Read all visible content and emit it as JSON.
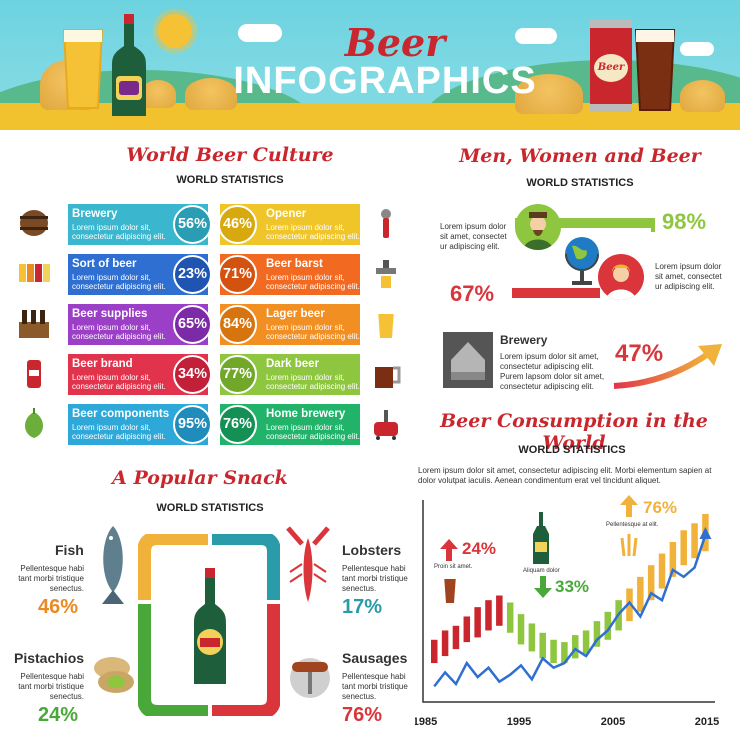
{
  "header": {
    "title": "Beer",
    "subtitle": "INFOGRAPHICS",
    "can_label": "Beer"
  },
  "culture": {
    "title": "World Beer Culture",
    "subtitle": "WORLD STATISTICS",
    "left": [
      {
        "title": "Brewery",
        "text": "Lorem ipsum dolor sit, consectetur adipiscing elit.",
        "pct": "56%",
        "color": "#3ab6cf",
        "circle": "#2a9cb4",
        "icon": "barrel-icon"
      },
      {
        "title": "Sort of beer",
        "text": "Lorem ipsum dolor sit, consectetur adipiscing elit.",
        "pct": "23%",
        "color": "#2f6fd1",
        "circle": "#1f55b0",
        "icon": "beer-glasses-icon"
      },
      {
        "title": "Beer supplies",
        "text": "Lorem ipsum dolor sit, consectetur adipiscing elit.",
        "pct": "65%",
        "color": "#9b3fc7",
        "circle": "#7d2aa7",
        "icon": "beer-crate-icon"
      },
      {
        "title": "Beer brand",
        "text": "Lorem ipsum dolor sit, consectetur adipiscing elit.",
        "pct": "34%",
        "color": "#e2334d",
        "circle": "#c21f38",
        "icon": "beer-can-icon"
      },
      {
        "title": "Beer components",
        "text": "Lorem ipsum dolor sit, consectetur adipiscing elit.",
        "pct": "95%",
        "color": "#2ea8d8",
        "circle": "#1f8cbc",
        "icon": "hop-icon"
      }
    ],
    "right": [
      {
        "title": "Opener",
        "text": "Lorem ipsum dolor sit, consectetur adipiscing elit.",
        "pct": "46%",
        "color": "#f0c52a",
        "circle": "#d8a90f",
        "icon": "opener-icon"
      },
      {
        "title": "Beer barst",
        "text": "Lorem ipsum dolor sit, consectetur adipiscing elit.",
        "pct": "71%",
        "color": "#f26a22",
        "circle": "#d4520f",
        "icon": "beer-tap-icon"
      },
      {
        "title": "Lager beer",
        "text": "Lorem ipsum dolor sit, consectetur adipiscing elit.",
        "pct": "84%",
        "color": "#f28f22",
        "circle": "#d6740f",
        "icon": "lager-glass-icon"
      },
      {
        "title": "Dark beer",
        "text": "Lorem ipsum dolor sit, consectetur adipiscing elit.",
        "pct": "77%",
        "color": "#8fc63f",
        "circle": "#72a82a",
        "icon": "dark-beer-mug-icon"
      },
      {
        "title": "Home brewery",
        "text": "Lorem ipsum dolor sit, consectetur adipiscing elit.",
        "pct": "76%",
        "color": "#22b36a",
        "circle": "#159055",
        "icon": "home-brewery-icon"
      }
    ]
  },
  "men_women": {
    "title": "Men, Women and Beer",
    "subtitle": "WORLD STATISTICS",
    "men_text": "Lorem ipsum dolor sit amet, consectet ur adipiscing elit.",
    "men_pct": "98%",
    "men_value": 0.98,
    "women_text": "Lorem ipsum dolor sit amet, consectet ur adipiscing elit.",
    "women_pct": "67%",
    "women_value": 0.67,
    "brewery_title": "Brewery",
    "brewery_text": "Lorem ipsum dolor sit amet, consectetur adipiscing elit. Purem lapsom dolor sit amet, consectetur adipiscing elit.",
    "brewery_pct": "47%"
  },
  "snack": {
    "title": "A Popular Snack",
    "subtitle": "WORLD STATISTICS",
    "items": [
      {
        "name": "Fish",
        "text": "Pellentesque habi tant morbi tristique senectus.",
        "pct": "46%",
        "color": "#e98a25"
      },
      {
        "name": "Pistachios",
        "text": "Pellentesque habi tant morbi tristique senectus.",
        "pct": "24%",
        "color": "#4aa83a"
      },
      {
        "name": "Lobsters",
        "text": "Pellentesque habi tant morbi tristique senectus.",
        "pct": "17%",
        "color": "#2a9ba8"
      },
      {
        "name": "Sausages",
        "text": "Pellentesque habi tant morbi tristique senectus.",
        "pct": "76%",
        "color": "#d9353a"
      }
    ]
  },
  "consumption": {
    "title": "Beer Consumption in the World",
    "subtitle": "WORLD STATISTICS",
    "text": "Lorem ipsum dolor sit amet, consectetur adipiscing elit. Morbi elementum sapien at dolor volutpat iaculis. Aenean condimentum erat vel tincidunt aliquet.",
    "callouts": [
      {
        "pct": "24%",
        "note": "Proin sit amet.",
        "direction": "up",
        "color": "#d9353a"
      },
      {
        "pct": "33%",
        "note": "Aliquam dolor",
        "direction": "down",
        "color": "#4aa83a"
      },
      {
        "pct": "76%",
        "note": "Pellentesque at elit.",
        "direction": "up",
        "color": "#f0b23a"
      }
    ]
  },
  "chart_data": {
    "type": "bar",
    "xlabels": [
      "1985",
      "1995",
      "2005",
      "2015"
    ],
    "x_range": [
      1985,
      2015
    ],
    "bars": [
      {
        "low": 30,
        "high": 50
      },
      {
        "low": 36,
        "high": 58
      },
      {
        "low": 42,
        "high": 62
      },
      {
        "low": 48,
        "high": 70
      },
      {
        "low": 52,
        "high": 78
      },
      {
        "low": 58,
        "high": 84
      },
      {
        "low": 62,
        "high": 88
      },
      {
        "low": 56,
        "high": 82
      },
      {
        "low": 46,
        "high": 72
      },
      {
        "low": 40,
        "high": 64
      },
      {
        "low": 34,
        "high": 56
      },
      {
        "low": 30,
        "high": 50
      },
      {
        "low": 30,
        "high": 48
      },
      {
        "low": 34,
        "high": 54
      },
      {
        "low": 38,
        "high": 58
      },
      {
        "low": 44,
        "high": 66
      },
      {
        "low": 50,
        "high": 74
      },
      {
        "low": 58,
        "high": 84
      },
      {
        "low": 66,
        "high": 94
      },
      {
        "low": 74,
        "high": 104
      },
      {
        "low": 84,
        "high": 114
      },
      {
        "low": 94,
        "high": 124
      },
      {
        "low": 104,
        "high": 134
      },
      {
        "low": 114,
        "high": 144
      },
      {
        "low": 120,
        "high": 150
      },
      {
        "low": 126,
        "high": 158
      }
    ],
    "bar_colors": [
      "#c9272d",
      "#c9272d",
      "#c9272d",
      "#c9272d",
      "#c9272d",
      "#c9272d",
      "#c9272d",
      "#8fc63f",
      "#8fc63f",
      "#8fc63f",
      "#8fc63f",
      "#8fc63f",
      "#8fc63f",
      "#8fc63f",
      "#8fc63f",
      "#8fc63f",
      "#8fc63f",
      "#8fc63f",
      "#f0b23a",
      "#f0b23a",
      "#f0b23a",
      "#f0b23a",
      "#f0b23a",
      "#f0b23a",
      "#f0b23a",
      "#f0b23a"
    ],
    "line": [
      10,
      22,
      12,
      30,
      18,
      26,
      14,
      20,
      28,
      16,
      34,
      26,
      30,
      42,
      36,
      50,
      58,
      72,
      82,
      70,
      90,
      84,
      110,
      104,
      112,
      140
    ],
    "line_color": "#2f6fd1",
    "ylim": [
      0,
      170
    ]
  }
}
